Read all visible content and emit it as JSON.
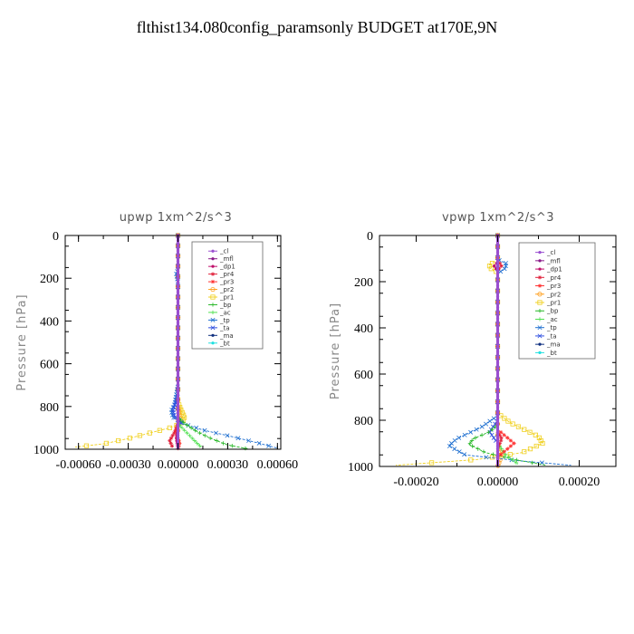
{
  "page": {
    "title": "flthist134.080config_paramsonly  BUDGET at170E,9N"
  },
  "legend_entries": [
    "_cl",
    "_mfl",
    "_dp1",
    "_pr4",
    "_pr3",
    "_pr2",
    "_pr1",
    "_bp",
    "_ac",
    "_tp",
    "_ta",
    "_ma",
    "_bt"
  ],
  "series_colors": {
    "_cl": "#9a4fd0",
    "_mfl": "#8a1a8a",
    "_dp1": "#c0106a",
    "_pr4": "#e0203a",
    "_pr3": "#ff3030",
    "_pr2": "#ffa020",
    "_pr1": "#f0d020",
    "_bp": "#28b828",
    "_ac": "#50e050",
    "_tp": "#2070d0",
    "_ta": "#3050e0",
    "_ma": "#103080",
    "_bt": "#20e0e0"
  },
  "chart_data": [
    {
      "type": "line",
      "title": "upwp   1xm^2/s^3",
      "ylabel": "Pressure [hPa]",
      "xlabel": "",
      "xlim": [
        -0.00068,
        0.00062
      ],
      "ylim": [
        1000,
        0
      ],
      "xticks": [
        -0.0006,
        -0.0003,
        0.0,
        0.0003,
        0.0006
      ],
      "xtick_labels": [
        "-0.00060",
        "-0.00030",
        "0.00000",
        "0.00030",
        "0.00060"
      ],
      "yticks": [
        0,
        200,
        400,
        600,
        800,
        1000
      ],
      "ytick_labels": [
        "0",
        "200",
        "400",
        "600",
        "800",
        "1000"
      ],
      "series": [
        {
          "name": "_pr1",
          "points": [
            [
              0,
              0
            ],
            [
              0,
              200
            ],
            [
              0,
              600
            ],
            [
              0,
              780
            ],
            [
              2e-05,
              820
            ],
            [
              4e-05,
              850
            ],
            [
              2e-05,
              880
            ],
            [
              -5e-05,
              900
            ],
            [
              -0.00015,
              920
            ],
            [
              -0.0003,
              950
            ],
            [
              -0.00045,
              975
            ],
            [
              -0.00062,
              990
            ]
          ]
        },
        {
          "name": "_pr2",
          "points": [
            [
              0,
              0
            ],
            [
              0,
              700
            ],
            [
              0,
              800
            ],
            [
              1e-05,
              850
            ],
            [
              0,
              900
            ],
            [
              0,
              1000
            ]
          ]
        },
        {
          "name": "_tp",
          "points": [
            [
              0,
              0
            ],
            [
              0,
              160
            ],
            [
              -1e-05,
              180
            ],
            [
              0,
              220
            ],
            [
              0,
              700
            ],
            [
              -2e-05,
              790
            ],
            [
              -4e-05,
              820
            ],
            [
              -3e-05,
              850
            ],
            [
              3e-05,
              880
            ],
            [
              0.00015,
              910
            ],
            [
              0.00032,
              940
            ],
            [
              0.00048,
              970
            ],
            [
              0.0006,
              995
            ]
          ]
        },
        {
          "name": "_ta",
          "points": [
            [
              0,
              0
            ],
            [
              0,
              750
            ],
            [
              -3e-05,
              820
            ],
            [
              -2e-05,
              850
            ],
            [
              2e-05,
              870
            ],
            [
              0,
              900
            ]
          ]
        },
        {
          "name": "_bp",
          "points": [
            [
              0,
              0
            ],
            [
              0,
              850
            ],
            [
              4e-05,
              880
            ],
            [
              0.00012,
              920
            ],
            [
              0.0002,
              950
            ],
            [
              0.0003,
              980
            ],
            [
              0.00042,
              998
            ]
          ]
        },
        {
          "name": "_ac",
          "points": [
            [
              0,
              0
            ],
            [
              0,
              880
            ],
            [
              5e-05,
              920
            ],
            [
              0.0001,
              960
            ],
            [
              0.00014,
              990
            ]
          ]
        },
        {
          "name": "_pr4",
          "points": [
            [
              0,
              0
            ],
            [
              0,
              880
            ],
            [
              -2e-05,
              920
            ],
            [
              -5e-05,
              960
            ],
            [
              -3e-05,
              995
            ]
          ]
        },
        {
          "name": "_pr3",
          "points": [
            [
              0,
              0
            ],
            [
              0,
              890
            ],
            [
              -1e-05,
              930
            ],
            [
              1e-05,
              970
            ],
            [
              0,
              1000
            ]
          ]
        },
        {
          "name": "_dp1",
          "points": [
            [
              0,
              0
            ],
            [
              0,
              900
            ],
            [
              -1e-05,
              950
            ],
            [
              0,
              1000
            ]
          ]
        },
        {
          "name": "_mfl",
          "points": [
            [
              0,
              0
            ],
            [
              0,
              1000
            ]
          ]
        },
        {
          "name": "_cl",
          "points": [
            [
              0,
              0
            ],
            [
              0,
              1000
            ]
          ]
        }
      ]
    },
    {
      "type": "line",
      "title": "vpwp   1xm^2/s^3",
      "ylabel": "Pressure [hPa]",
      "xlabel": "",
      "xlim": [
        -0.00029,
        0.00029
      ],
      "ylim": [
        1000,
        0
      ],
      "xticks": [
        -0.0002,
        0.0,
        0.0002
      ],
      "xtick_labels": [
        "-0.00020",
        "0.00000",
        "0.00020"
      ],
      "yticks": [
        0,
        200,
        400,
        600,
        800,
        1000
      ],
      "ytick_labels": [
        "0",
        "200",
        "400",
        "600",
        "800",
        "1000"
      ],
      "series": [
        {
          "name": "_pr1",
          "points": [
            [
              0,
              0
            ],
            [
              0,
              110
            ],
            [
              -2e-05,
              125
            ],
            [
              -2e-05,
              140
            ],
            [
              0,
              160
            ],
            [
              0,
              770
            ],
            [
              3e-05,
              810
            ],
            [
              0.0001,
              870
            ],
            [
              0.00011,
              900
            ],
            [
              6e-05,
              940
            ],
            [
              -5e-05,
              970
            ],
            [
              -0.00025,
              995
            ]
          ]
        },
        {
          "name": "_pr2",
          "points": [
            [
              0,
              0
            ],
            [
              0,
              900
            ],
            [
              1e-05,
              950
            ],
            [
              0,
              1000
            ]
          ]
        },
        {
          "name": "_tp",
          "points": [
            [
              0,
              0
            ],
            [
              0,
              105
            ],
            [
              2e-05,
              120
            ],
            [
              2e-05,
              140
            ],
            [
              0,
              165
            ],
            [
              0,
              780
            ],
            [
              -4e-05,
              830
            ],
            [
              -0.0001,
              880
            ],
            [
              -0.00012,
              910
            ],
            [
              -8e-05,
              950
            ],
            [
              5e-05,
              975
            ],
            [
              0.00018,
              995
            ]
          ]
        },
        {
          "name": "_ta",
          "points": [
            [
              0,
              0
            ],
            [
              0,
              800
            ],
            [
              -2e-05,
              850
            ],
            [
              0,
              900
            ]
          ]
        },
        {
          "name": "_bp",
          "points": [
            [
              0,
              0
            ],
            [
              0,
              820
            ],
            [
              -2e-05,
              850
            ],
            [
              -6e-05,
              880
            ],
            [
              -7e-05,
              905
            ],
            [
              -3e-05,
              940
            ],
            [
              4e-05,
              970
            ],
            [
              0.00012,
              995
            ]
          ]
        },
        {
          "name": "_ac",
          "points": [
            [
              0,
              0
            ],
            [
              0,
              900
            ],
            [
              2e-05,
              950
            ],
            [
              5e-05,
              990
            ]
          ]
        },
        {
          "name": "_pr4",
          "points": [
            [
              0,
              0
            ],
            [
              0,
              110
            ],
            [
              1e-05,
              130
            ],
            [
              0,
              150
            ],
            [
              0,
              850
            ],
            [
              1e-05,
              880
            ],
            [
              0,
              920
            ],
            [
              0,
              1000
            ]
          ]
        },
        {
          "name": "_pr3",
          "points": [
            [
              0,
              0
            ],
            [
              0,
              840
            ],
            [
              2e-05,
              870
            ],
            [
              4e-05,
              900
            ],
            [
              2e-05,
              930
            ],
            [
              0,
              960
            ],
            [
              0,
              1000
            ]
          ]
        },
        {
          "name": "_dp1",
          "points": [
            [
              0,
              0
            ],
            [
              0,
              115
            ],
            [
              -1e-05,
              135
            ],
            [
              0,
              150
            ],
            [
              0,
              1000
            ]
          ]
        },
        {
          "name": "_mfl",
          "points": [
            [
              0,
              0
            ],
            [
              0,
              1000
            ]
          ]
        },
        {
          "name": "_cl",
          "points": [
            [
              0,
              0
            ],
            [
              0,
              1000
            ]
          ]
        }
      ]
    }
  ]
}
